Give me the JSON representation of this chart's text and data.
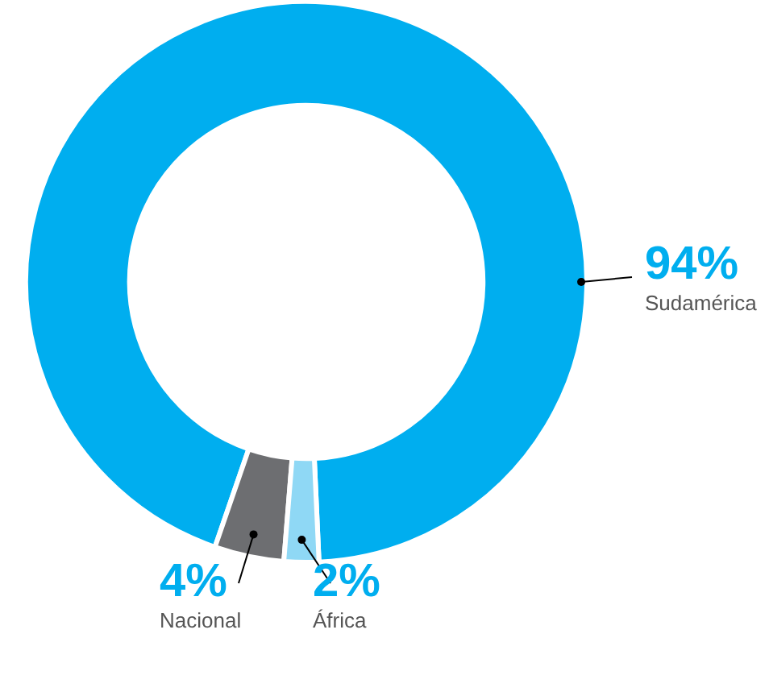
{
  "chart_data": {
    "type": "donut",
    "categories": [
      "Sudamérica",
      "Nacional",
      "África"
    ],
    "values": [
      94,
      4,
      2
    ],
    "colors": [
      "#00aeef",
      "#6d6e71",
      "#8fd8f5"
    ],
    "value_labels": [
      "94%",
      "4%",
      "2%"
    ],
    "legend": false
  }
}
